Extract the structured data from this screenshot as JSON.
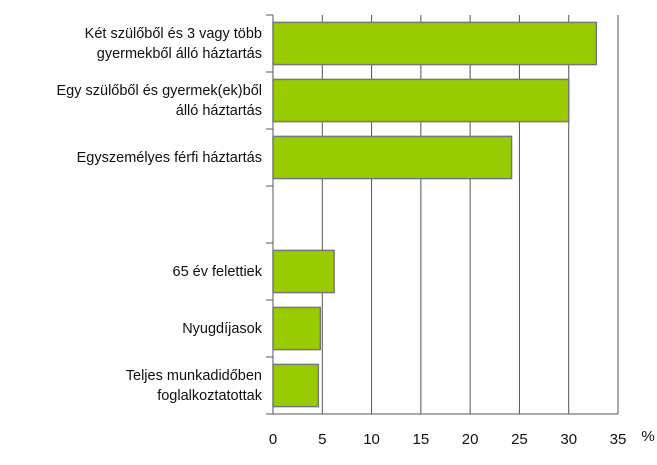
{
  "chart_data": {
    "type": "bar",
    "orientation": "horizontal",
    "categories": [
      "Két szülőből és 3 vagy több\ngyermekből álló háztartás",
      "Egy szülőből és gyermek(ek)ből\nálló háztartás",
      "Egyszemélyes férfi háztartás",
      null,
      "65 év felettiek",
      "Nyugdíjasok",
      "Teljes munkadidőben\nfoglalkoztatottak"
    ],
    "values": [
      32.8,
      30.0,
      24.2,
      null,
      6.2,
      4.8,
      4.6
    ],
    "color": "#99cc00",
    "xlim": [
      0,
      35
    ],
    "xticks": [
      0,
      5,
      10,
      15,
      20,
      25,
      30,
      35
    ],
    "x_unit": "%",
    "grid": true
  }
}
